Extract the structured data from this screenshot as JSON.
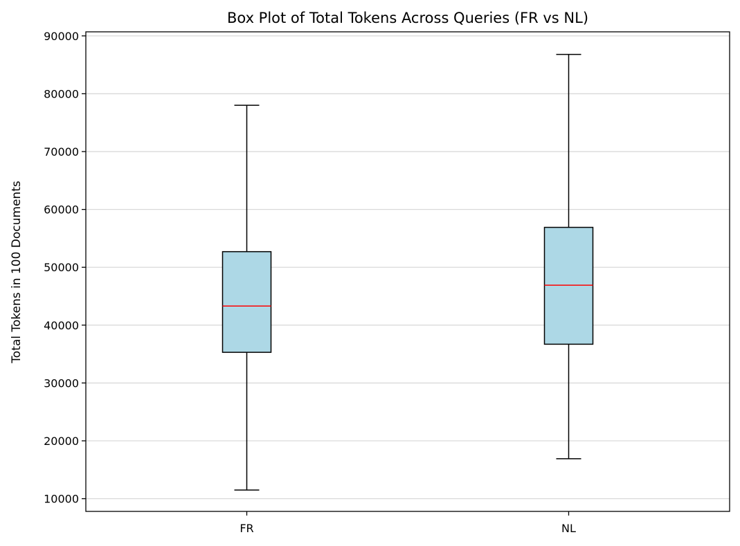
{
  "chart_data": {
    "type": "box",
    "title": "Box Plot of Total Tokens Across Queries (FR vs NL)",
    "xlabel": "",
    "ylabel": "Total Tokens in 100 Documents",
    "categories": [
      "FR",
      "NL"
    ],
    "boxes": [
      {
        "category": "FR",
        "whisker_low": 11500,
        "q1": 35300,
        "median": 43300,
        "q3": 52700,
        "whisker_high": 78000
      },
      {
        "category": "NL",
        "whisker_low": 16900,
        "q1": 36700,
        "median": 46900,
        "q3": 56900,
        "whisker_high": 86800
      }
    ],
    "ylim": [
      7800,
      90700
    ],
    "yticks": [
      10000,
      20000,
      30000,
      40000,
      50000,
      60000,
      70000,
      80000,
      90000
    ],
    "ytick_labels": [
      "10000",
      "20000",
      "30000",
      "40000",
      "50000",
      "60000",
      "70000",
      "80000",
      "90000"
    ],
    "grid": "horizontal",
    "colors": {
      "box_fill": "#add8e6",
      "box_edge": "#000000",
      "median": "#ff0000",
      "grid": "#d9d9d9"
    }
  }
}
